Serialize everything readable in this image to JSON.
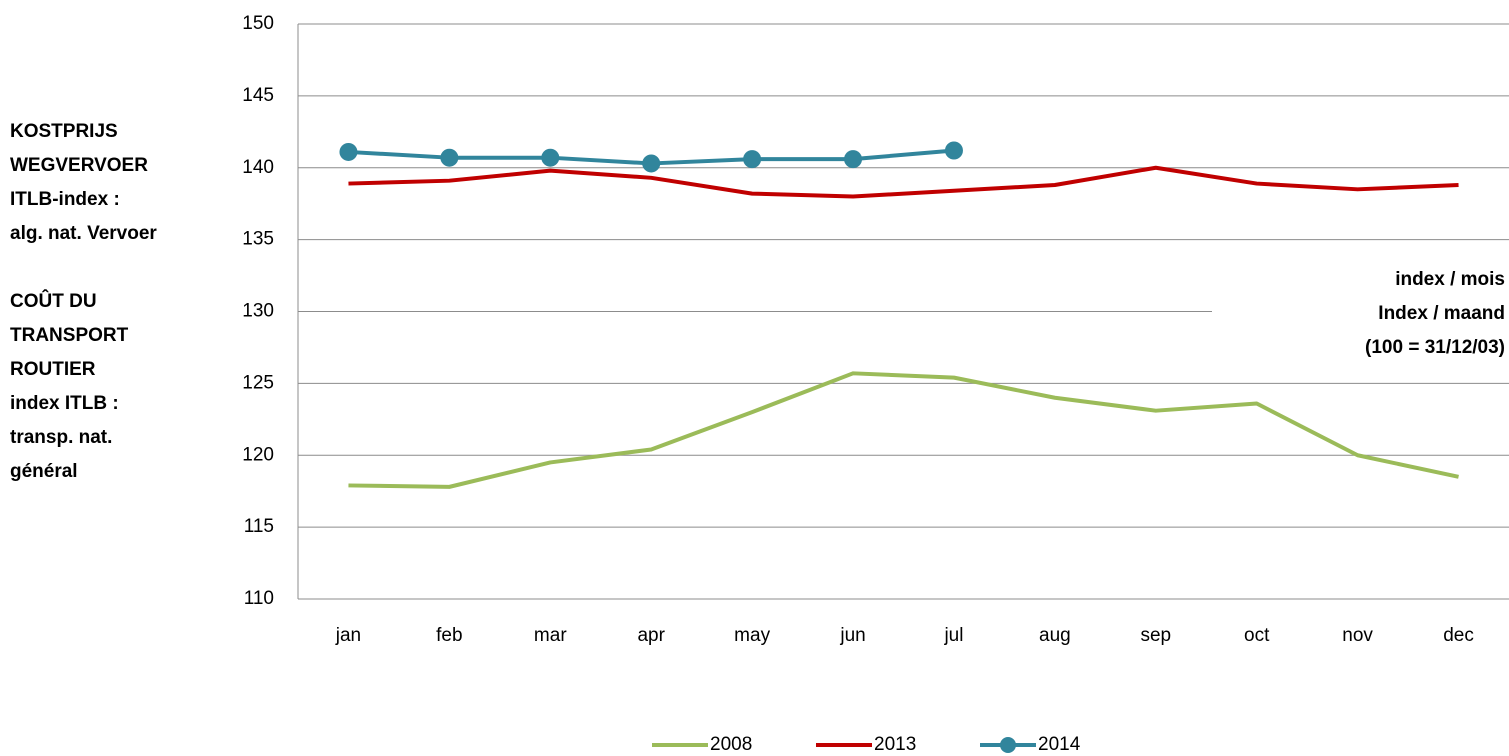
{
  "chart_data": {
    "type": "line",
    "y_label_nl": [
      "KOSTPRIJS",
      "WEGVERVOER",
      "ITLB-index :",
      "alg. nat. Vervoer"
    ],
    "y_label_fr": [
      "COÛT DU",
      "TRANSPORT",
      "ROUTIER",
      "index ITLB :",
      "transp. nat.",
      "général"
    ],
    "annotation": [
      "index / mois",
      "Index / maand",
      "(100 = 31/12/03)"
    ],
    "categories": [
      "jan",
      "feb",
      "mar",
      "apr",
      "may",
      "jun",
      "jul",
      "aug",
      "sep",
      "oct",
      "nov",
      "dec"
    ],
    "series": [
      {
        "name": "2008",
        "color": "#9bbb59",
        "marker": false,
        "values": [
          117.9,
          117.8,
          119.5,
          120.4,
          123.0,
          125.7,
          125.4,
          124.0,
          123.1,
          123.6,
          120.0,
          118.5
        ]
      },
      {
        "name": "2013",
        "color": "#c00000",
        "marker": false,
        "values": [
          138.9,
          139.1,
          139.8,
          139.3,
          138.2,
          138.0,
          138.4,
          138.8,
          140.0,
          138.9,
          138.5,
          138.8
        ]
      },
      {
        "name": "2014",
        "color": "#31859c",
        "marker": true,
        "values": [
          141.1,
          140.7,
          140.7,
          140.3,
          140.6,
          140.6,
          141.2,
          null,
          null,
          null,
          null,
          null
        ]
      }
    ],
    "ylim": [
      110,
      150
    ],
    "yticks": [
      110,
      115,
      120,
      125,
      130,
      135,
      140,
      145,
      150
    ],
    "grid": true,
    "legend": "bottom"
  }
}
